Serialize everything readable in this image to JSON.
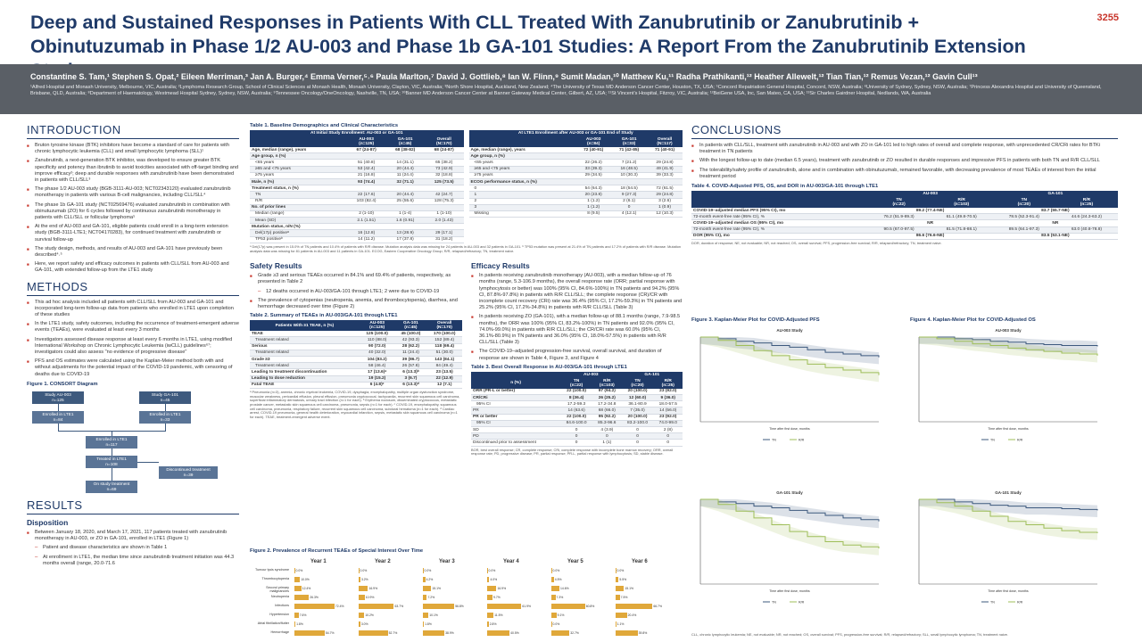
{
  "poster": {
    "number": "3255",
    "title": "Deep and Sustained Responses in Patients With CLL Treated With Zanubrutinib or Zanubrutinib + Obinutuzumab in Phase 1/2 AU-003 and Phase 1b GA-101 Studies: A Report From the Zanubrutinib Extension Study",
    "authors": "Constantine S. Tam,¹ Stephen S. Opat,² Eileen Merriman,³ Jan A. Burger,⁴ Emma Verner,⁵˒⁶ Paula Marlton,⁷ David J. Gottlieb,⁸ Ian W. Flinn,⁹ Sumit Madan,¹⁰ Matthew Ku,¹¹ Radha Prathikanti,¹² Heather Allewelt,¹² Tian Tian,¹² Remus Vezan,¹² Gavin Cull¹³",
    "affiliations": "¹Alfred Hospital and Monash University, Melbourne, VIC, Australia; ²Lymphoma Research Group, School of Clinical Sciences at Monash Health, Monash University, Clayton, VIC, Australia; ³North Shore Hospital, Auckland, New Zealand; ⁴The University of Texas MD Anderson Cancer Center, Houston, TX, USA; ⁵Concord Repatriation General Hospital, Concord, NSW, Australia; ⁶University of Sydney, Sydney, NSW, Australia; ⁷Princess Alexandra Hospital and University of Queensland, Brisbane, QLD, Australia; ⁸Department of Haematology, Westmead Hospital Sydney, Sydney, NSW, Australia; ⁹Tennessee Oncology/OneOncology, Nashville, TN, USA; ¹⁰Banner MD Anderson Cancer Center at Banner Gateway Medical Center, Gilbert, AZ, USA; ¹¹St Vincent's Hospital, Fitzroy, VIC, Australia; ¹²BeiGene USA, Inc, San Mateo, CA, USA; ¹³Sir Charles Gairdner Hospital, Nedlands, WA, Australia"
  },
  "intro": {
    "heading": "INTRODUCTION",
    "bullets": [
      "Bruton tyrosine kinase (BTK) inhibitors have become a standard of care for patients with chronic lymphocytic leukemia (CLL) and small lymphocytic lymphoma (SLL)¹",
      "Zanubrutinib, a next-generation BTK inhibitor, was developed to ensure greater BTK specificity and potency than ibrutinib to avoid toxicities associated with off-target binding and improve efficacy²; deep and durable responses with zanubrutinib have been demonstrated in patients with CLL/SLL³",
      "The phase 1/2 AU-003 study (BGB-3111-AU-003; NCT02343120) evaluated zanubrutinib monotherapy in patients with various B-cell malignancies, including CLL/SLL⁴",
      "The phase 1b GA-101 study (NCT02569476) evaluated zanubrutinib in combination with obinutuzumab (ZO) for 6 cycles followed by continuous zanubrutinib monotherapy in patients with CLL/SLL or follicular lymphoma⁵",
      "At the end of AU-003 and GA-101, eligible patients could enroll in a long-term extension study (BGB-3111-LTE1; NCT04170283), for continued treatment with zanubrutinib or survival follow-up",
      "The study design, methods, and results of AU-003 and GA-101 have previously been described⁴˒⁵",
      "Here, we report safety and efficacy outcomes in patients with CLL/SLL from AU-003 and GA-101, with extended follow-up from the LTE1 study"
    ]
  },
  "methods": {
    "heading": "METHODS",
    "bullets": [
      "This ad hoc analysis included all patients with CLL/SLL from AU-003 and GA-101 and incorporated long-term follow-up data from patients who enrolled in LTE1 upon completion of these studies",
      "In the LTE1 study, safety outcomes, including the occurrence of treatment-emergent adverse events (TEAEs), were evaluated at least every 3 months",
      "Investigators assessed disease response at least every 6 months in LTE1, using modified International Workshop on Chronic Lymphocytic Leukemia (iwCLL) guidelines⁶⁷; investigators could also assess \"no evidence of progressive disease\"",
      "PFS and OS estimates were calculated using the Kaplan-Meier method both with and without adjustments for the potential impact of the COVID-19 pandemic, with censoring of deaths due to COVID-19"
    ],
    "figure_caption": "Figure 1. CONSORT Diagram",
    "consort": {
      "au003": "Study AU-003\nn=125",
      "ga101": "Study GA-101\nn=45",
      "au_lte": "Enrolled in LTE1\nn=84",
      "ga_lte": "Enrolled in LTE1\nn=33",
      "total_lte": "Enrolled in LTE1\nn=117",
      "treated": "Treated in LTE1\nn=108",
      "discontinued": "Discontinued treatment\nn=39",
      "ontreatment": "On study treatment\nn=69"
    }
  },
  "results": {
    "heading": "RESULTS",
    "subheading": "Disposition",
    "bullets": [
      "Between January 18, 2020, and March 17, 2021, 117 patients treated with zanubrutinib monotherapy in AU-003, or ZO in GA-101, enrolled in LTE1 (Figure 1)"
    ],
    "sub_bullets": [
      "Patient and disease characteristics are shown in Table 1",
      "At enrollment in LTE1, the median time since zanubrutinib treatment initiation was 44.3 months overall (range, 20.0-71.6"
    ]
  },
  "table1": {
    "caption": "Table 1. Baseline Demographics and Clinical Characteristics",
    "left_header": "At Initial Study Enrollment: AU-003 or GA-101",
    "right_header": "At LTE1 Enrollment after AU-003 or GA-101 End of Study",
    "left_cols": [
      "",
      "AU-003\n(n=125)",
      "GA-101\n(n=45)",
      "Overall\n(N=170)"
    ],
    "right_cols": [
      "",
      "AU-003\n(n=84)",
      "GA-101\n(n=33)",
      "Overall\n(N=117)"
    ],
    "left_rows": [
      [
        "Age, median (range), years",
        "67 (24-87)",
        "68 (38-82)",
        "68 (24-87)"
      ],
      [
        "Age group, n (%)",
        "",
        "",
        ""
      ],
      [
        "<65 years",
        "51 (40.8)",
        "14 (31.1)",
        "65 (38.2)"
      ],
      [
        "≥65 and <75 years",
        "53 (42.4)",
        "20 (44.4)",
        "73 (42.9)"
      ],
      [
        "≥75 years",
        "21 (16.8)",
        "11 (24.4)",
        "32 (18.8)"
      ],
      [
        "Male, n (%)",
        "93 (74.4)",
        "32 (71.1)",
        "125 (73.5)"
      ],
      [
        "Treatment status, n (%)",
        "",
        "",
        ""
      ],
      [
        "TN",
        "22 (17.6)",
        "20 (44.4)",
        "42 (24.7)"
      ],
      [
        "R/R",
        "103 (82.4)",
        "25 (55.6)",
        "128 (75.3)"
      ],
      [
        "No. of prior lines",
        "",
        "",
        ""
      ],
      [
        "Median (range)",
        "2 (1-10)",
        "1 (1-4)",
        "1 (1-10)"
      ],
      [
        "Mean (SD)",
        "2.1 (1.51)",
        "1.6 (0.91)",
        "2.0 (1.43)"
      ],
      [
        "Mutation status, n/N (%)",
        "",
        "",
        ""
      ],
      [
        "Del(17p) positiveᵃ",
        "16 (12.8)",
        "13 (28.9)",
        "29 (17.1)"
      ],
      [
        "TP53 positiveᵇ",
        "14 (11.2)",
        "17 (37.8)",
        "31 (18.2)"
      ]
    ],
    "right_rows": [
      [
        "Age, median (range), years",
        "72 (40-91)",
        "71 (42-85)",
        "71 (40-91)"
      ],
      [
        "Age group, n (%)",
        "",
        "",
        ""
      ],
      [
        "<65 years",
        "22 (26.2)",
        "7 (21.2)",
        "29 (24.8)"
      ],
      [
        "≥65 and <75 years",
        "33 (39.3)",
        "16 (48.5)",
        "49 (41.9)"
      ],
      [
        "≥75 years",
        "29 (34.5)",
        "10 (30.3)",
        "39 (33.3)"
      ],
      [
        "ECOG performance status, n (%)",
        "",
        "",
        ""
      ],
      [
        "0",
        "54 (64.3)",
        "18 (54.5)",
        "72 (61.5)"
      ],
      [
        "1",
        "20 (23.8)",
        "9 (27.3)",
        "29 (24.8)"
      ],
      [
        "2",
        "1 (1.2)",
        "2 (6.1)",
        "3 (2.6)"
      ],
      [
        "3",
        "1 (1.2)",
        "0",
        "1 (0.9)"
      ],
      [
        "Missing",
        "8 (9.5)",
        "4 (12.1)",
        "12 (10.3)"
      ]
    ],
    "note": "ᵃ Del(17p) was present in 15.0% of TN patients and 10.4% of patients with R/R disease. Mutation analysis data was missing for 24 patients in AU-003 and 32 patients in GA-101. ᵇ TP53 mutation was present at 21.4% of TN patients and 17.2% of patients with R/R disease. Mutation analysis data was missing for 81 patients in AU-003 and 11 patients in GA-101. ECOG, Eastern Cooperative Oncology Group; R/R, relapsed/refractory; TN, treatment naive."
  },
  "safety": {
    "heading": "Safety Results",
    "bullets": [
      "Grade ≥3 and serious TEAEs occurred in 84.1% and 69.4% of patients, respectively, as presented in Table 2",
      "The prevalence of cytopenias (neutropenia, anemia, and thrombocytopenia), diarrhea, and hemorrhage decreased over time (Figure 2)"
    ],
    "sub_bullets": [
      "12 deaths occurred in AU-003/GA-101 through LTE1; 2 were due to COVID-19"
    ]
  },
  "table2": {
    "caption": "Table 2. Summary of TEAEs in AU-003/GA-101 through LTE1",
    "cols": [
      "Patients With ≥1 TEAE, n (%)",
      "AU-003\n(n=125)",
      "GA-101\n(n=45)",
      "Overall\n(N=170)"
    ],
    "rows": [
      [
        "TEAE",
        "125 (100.0)",
        "45 (100.0)",
        "170 (100.0)"
      ],
      [
        "Treatment related",
        "110 (88.0)",
        "42 (93.3)",
        "152 (89.4)"
      ],
      [
        "Serious",
        "90 (72.0)",
        "28 (62.2)",
        "118 (69.4)"
      ],
      [
        "Treatment related",
        "40 (32.0)",
        "11 (24.4)",
        "51 (30.0)"
      ],
      [
        "Grade ≥3",
        "104 (83.2)",
        "39 (86.7)",
        "143 (84.1)"
      ],
      [
        "Treatment related",
        "58 (46.4)",
        "26 (57.8)",
        "84 (49.4)"
      ],
      [
        "Leading to treatment discontinuation",
        "17 (13.6)ᵃ",
        "6 (13.3)ᵇ",
        "23 (13.5)"
      ],
      [
        "Leading to dose reduction",
        "19 (15.2)",
        "3 (6.7)",
        "22 (12.9)"
      ],
      [
        "Fatal TEAE",
        "6 (4.8)ᶜ",
        "6 (13.3)ᵈ",
        "12 (7.1)"
      ]
    ],
    "note": "ᵃ Pneumonia (n=3), anemia, chronic myeloid leukemia, COVID-19, dysphagia, encephalopathy, multiple organ dysfunction syndrome, muscular weakness, pericardial effusion, pleural effusion, pneumonia cryptococcal, tachycardia, recurrent skin squamous cell carcinoma, superficial inflammatory dermatosis, urinary tract infection (n=1 for each). ᵇ Erythema nodosum, disseminated cryptococcus, metastatic prostate cancer, metastatic skin squamous cell carcinoma, pneumonia, sepsis (n=1 for each). ᶜ COVID-19, encephalopathy, squamous cell carcinoma, pneumonia, respiratory failure, recurrent skin squamous cell carcinoma, subdural hematoma (n=1 for each). ᵈ Cardiac arrest, COVID-19 pneumonia, general health deterioration, myocardial infarction, sepsis, metastatic skin squamous cell carcinoma (n=1 for each). TEAE, treatment-emergent adverse event."
  },
  "efficacy": {
    "heading": "Efficacy Results",
    "bullets": [
      "In patients receiving zanubrutinib monotherapy (AU-003), with a median follow-up of 76 months (range, 5.3-106.9 months), the overall response rate (ORR; partial response with lymphocytosis or better) was 100% (95% CI, 84.6%-100%) in TN patients and 94.2% (95% CI, 87.8%-97.8%) in patients with R/R CLL/SLL; the complete response (CR)/CR with incomplete count recovery (CRi) rate was 36.4% (95% CI, 17.2%-59.3%) in TN patients and 25.2% (95% CI, 17.2%-34.8%) in patients with R/R CLL/SLL (Table 3)",
      "In patients receiving ZO (GA-101), with a median follow-up of 88.1 months (range, 7.9-98.5 months), the ORR was 100% (95% CI, 83.2%-100%) in TN patients and 92.0% (95% CI, 74.0%-99.0%) in patients with R/R CLL/SLL; the CR/CRi rate was 60.0% (95% CI, 36.1%-80.9%) in TN patients and 36.0% (95% CI, 18.0%-57.5%) in patients with R/R CLL/SLL (Table 3)",
      "The COVID-19–adjusted progression-free survival, overall survival, and duration of response are shown in Table 4, Figure 3, and Figure 4"
    ]
  },
  "table3": {
    "caption": "Table 3. Best Overall Response in AU-003/GA-101 through LTE1",
    "group_au": "AU-003",
    "group_ga": "GA-101",
    "cols": [
      "n (%)",
      "TN\n(n=22)",
      "R/R\n(n=103)",
      "TN\n(n=20)",
      "R/R\n(n=25)"
    ],
    "rows": [
      [
        "ORR (PR-L or better)",
        "22 (100.0)",
        "97 (94.2)",
        "20 (100.0)",
        "23 (92.0)"
      ],
      [
        "CR/CRi",
        "8 (36.4)",
        "26 (25.2)",
        "12 (60.0)",
        "9 (36.0)"
      ],
      [
        "95% CI",
        "17.2-59.3",
        "17.2-34.8",
        "36.1-80.9",
        "18.0-57.5"
      ],
      [
        "PR",
        "14 (63.6)",
        "68 (66.0)",
        "7 (35.0)",
        "14 (56.0)"
      ],
      [
        "PR or better",
        "22 (100.0)",
        "95 (92.2)",
        "20 (100.0)",
        "23 (92.0)"
      ],
      [
        "95% CI",
        "84.6-100.0",
        "85.3-96.6",
        "83.2-100.0",
        "74.0-99.0"
      ],
      [
        "SD",
        "0",
        "4 (3.9)",
        "0",
        "2 (8)"
      ],
      [
        "PD",
        "0",
        "0",
        "0",
        "0"
      ],
      [
        "Discontinued prior to assessment",
        "0",
        "1 (1)",
        "0",
        "0"
      ]
    ],
    "note": "BOR, best overall response; CR, complete response; CRi, complete response with incomplete bone marrow recovery; ORR, overall response rate; PD, progressive disease; PR, partial response; PR-L, partial response with lymphocytosis; SD, stable disease."
  },
  "figure2": {
    "caption": "Figure 2. Prevalence of Recurrent TEAEs of Special Interest Over Time",
    "years": [
      "Year 1",
      "Year 2",
      "Year 3",
      "Year 4",
      "Year 5",
      "Year 6"
    ],
    "rows": [
      "Tumour lysis syndrome",
      "Thrombocytopenia",
      "Second primary malignancies",
      "Neutropenia",
      "Infections",
      "Hypertension",
      "Atrial fibrillation/flutter",
      "Hemorrhage"
    ],
    "values": [
      [
        0.0,
        0.0,
        0.0,
        0.0,
        0.0,
        0.0
      ],
      [
        10.0,
        3.2,
        4.2,
        4.0,
        4.5,
        5.5
      ],
      [
        12.4,
        16.9,
        15.1,
        16.9,
        14.6,
        15.1
      ],
      [
        26.3,
        10.9,
        7.2,
        9.7,
        7.3,
        7.5
      ],
      [
        72.4,
        63.7,
        56.8,
        61.9,
        60.8,
        66.7
      ],
      [
        7.6,
        10.2,
        10.1,
        11.5,
        9.1,
        20.4
      ],
      [
        1.8,
        3.0,
        1.8,
        2.8,
        0.0,
        1.1
      ],
      [
        54.7,
        52.7,
        38.9,
        40.5,
        32.7,
        39.8
      ]
    ]
  },
  "conclusions": {
    "heading": "CONCLUSIONS",
    "bullets": [
      "In patients with CLL/SLL, treatment with zanubrutinib in AU-003 and with ZO in GA-101 led to high rates of overall and complete response, with unprecedented CR/CRi rates for BTKi treatment in TN patients",
      "With the longest follow-up to date (median 6.5 years), treatment with zanubrutinib or ZO resulted in durable responses and impressive PFS in patients with both TN and R/R CLL/SLL",
      "The tolerability/safety profile of zanubrutinib, alone and in combination with obinutuzumab, remained favorable, with decreasing prevalence of most TEAEs of interest from the initial treatment period"
    ]
  },
  "table4": {
    "caption": "Table 4. COVID-Adjusted PFS, OS, and DOR in AU-003/GA-101 through LTE1",
    "group_au": "AU-003",
    "group_ga": "GA-101",
    "cols": [
      "",
      "TN\n(n=22)",
      "R/R\n(n=103)",
      "TN\n(n=20)",
      "R/R\n(n=25)"
    ],
    "rows": [
      [
        "COVID-19–adjusted median PFS (95% CI), mo",
        "89.2 (77.4-NE)",
        "",
        "83.7 (55.7-NE)",
        ""
      ],
      [
        "72-month event-free rate (95% CI), %",
        "76.2 (51.9-89.3)",
        "61.1 (49.8-70.5)",
        "78.5 (52.3-91.4)",
        "44.6 (24.3-63.2)"
      ],
      [
        "COVID-19–adjusted median OS (95% CI), mo",
        "NR",
        "",
        "NR",
        ""
      ],
      [
        "72-month event-free rate (95% CI), %",
        "90.5 (67.0-97.5)",
        "81.5 (71.8-88.1)",
        "89.5 (64.1-97.3)",
        "63.0 (40.8-78.8)"
      ],
      [
        "DOR (95% CI), mo",
        "86.6 (76.6-NE)",
        "",
        "83.5 (53.1-NE)",
        ""
      ]
    ],
    "note": "DOR, duration of response; NE, not evaluable; NR, not reached; OS, overall survival; PFS, progression-free survival; R/R, relapsed/refractory; TN, treatment naive."
  },
  "figure3": {
    "caption": "Figure 3. Kaplan-Meier Plot for COVID-Adjusted PFS",
    "panel_a": "AU-003 Study",
    "panel_b": "GA-101 Study",
    "xlabel": "Time after first dose, months",
    "ylabel": "Progression-free survival probability",
    "legend": [
      "TN",
      "R/R"
    ]
  },
  "figure4": {
    "caption": "Figure 4. Kaplan-Meier Plot for COVID-Adjusted OS",
    "panel_a": "AU-003 Study",
    "panel_b": "GA-101 Study",
    "xlabel": "Time after first dose, months",
    "ylabel": "Overall survival probability",
    "legend": [
      "TN",
      "R/R"
    ]
  },
  "km_note": "CLL, chronic lymphocytic leukemia; NE, not evaluable; NR, not reached; OS, overall survival; PFS, progression-free survival; R/R, relapsed/refractory; SLL, small lymphocytic lymphoma; TN, treatment naive.",
  "colors": {
    "navy": "#1f3a68",
    "red": "#c8352b",
    "band": "#5a5f66",
    "tn": "#3e5a7e",
    "rr": "#9fbf5a",
    "bar": "#e0a83a"
  }
}
